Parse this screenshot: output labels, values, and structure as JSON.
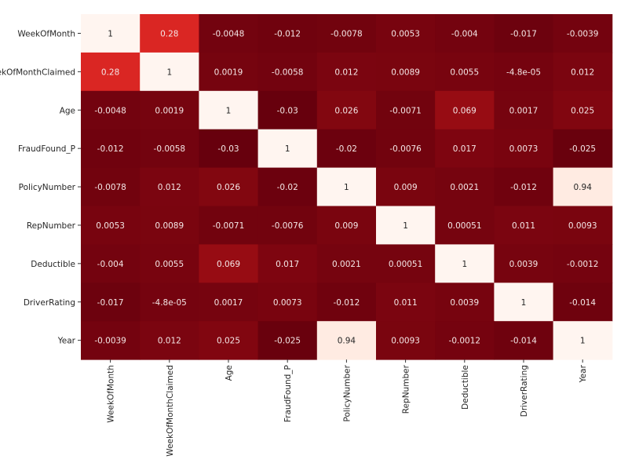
{
  "chart_data": {
    "type": "heatmap",
    "title": "",
    "colormap": "Reds_r",
    "color_range": [
      -0.03,
      1
    ],
    "colorbar": false,
    "annotated": true,
    "labels": [
      "WeekOfMonth",
      "WeekOfMonthClaimed",
      "Age",
      "FraudFound_P",
      "PolicyNumber",
      "RepNumber",
      "Deductible",
      "DriverRating",
      "Year"
    ],
    "row_labels_visible": [
      "WeekOfMonth",
      "ekOfMonthClaimed",
      "Age",
      "FraudFound_P",
      "PolicyNumber",
      "RepNumber",
      "Deductible",
      "DriverRating",
      "Year"
    ],
    "values": [
      [
        1,
        0.28,
        -0.0048,
        -0.012,
        -0.0078,
        0.0053,
        -0.004,
        -0.017,
        -0.0039
      ],
      [
        0.28,
        1,
        0.0019,
        -0.0058,
        0.012,
        0.0089,
        0.0055,
        -4.8e-05,
        0.012
      ],
      [
        -0.0048,
        0.0019,
        1,
        -0.03,
        0.026,
        -0.0071,
        0.069,
        0.0017,
        0.025
      ],
      [
        -0.012,
        -0.0058,
        -0.03,
        1,
        -0.02,
        -0.0076,
        0.017,
        0.0073,
        -0.025
      ],
      [
        -0.0078,
        0.012,
        0.026,
        -0.02,
        1,
        0.009,
        0.0021,
        -0.012,
        0.94
      ],
      [
        0.0053,
        0.0089,
        -0.0071,
        -0.0076,
        0.009,
        1,
        0.00051,
        0.011,
        0.0093
      ],
      [
        -0.004,
        0.0055,
        0.069,
        0.017,
        0.0021,
        0.00051,
        1,
        0.0039,
        -0.0012
      ],
      [
        -0.017,
        -4.8e-05,
        0.0017,
        0.0073,
        -0.012,
        0.011,
        0.0039,
        1,
        -0.014
      ],
      [
        -0.0039,
        0.012,
        0.025,
        -0.025,
        0.94,
        0.0093,
        -0.0012,
        -0.014,
        1
      ]
    ],
    "annotations": [
      [
        "1",
        "0.28",
        "-0.0048",
        "-0.012",
        "-0.0078",
        "0.0053",
        "-0.004",
        "-0.017",
        "-0.0039"
      ],
      [
        "0.28",
        "1",
        "0.0019",
        "-0.0058",
        "0.012",
        "0.0089",
        "0.0055",
        "-4.8e-05",
        "0.012"
      ],
      [
        "-0.0048",
        "0.0019",
        "1",
        "-0.03",
        "0.026",
        "-0.0071",
        "0.069",
        "0.0017",
        "0.025"
      ],
      [
        "-0.012",
        "-0.0058",
        "-0.03",
        "1",
        "-0.02",
        "-0.0076",
        "0.017",
        "0.0073",
        "-0.025"
      ],
      [
        "-0.0078",
        "0.012",
        "0.026",
        "-0.02",
        "1",
        "0.009",
        "0.0021",
        "-0.012",
        "0.94"
      ],
      [
        "0.0053",
        "0.0089",
        "-0.0071",
        "-0.0076",
        "0.009",
        "1",
        "0.00051",
        "0.011",
        "0.0093"
      ],
      [
        "-0.004",
        "0.0055",
        "0.069",
        "0.017",
        "0.0021",
        "0.00051",
        "1",
        "0.0039",
        "-0.0012"
      ],
      [
        "-0.017",
        "-4.8e-05",
        "0.0017",
        "0.0073",
        "-0.012",
        "0.011",
        "0.0039",
        "1",
        "-0.014"
      ],
      [
        "-0.0039",
        "0.012",
        "0.025",
        "-0.025",
        "0.94",
        "0.0093",
        "-0.0012",
        "-0.014",
        "1"
      ]
    ]
  }
}
